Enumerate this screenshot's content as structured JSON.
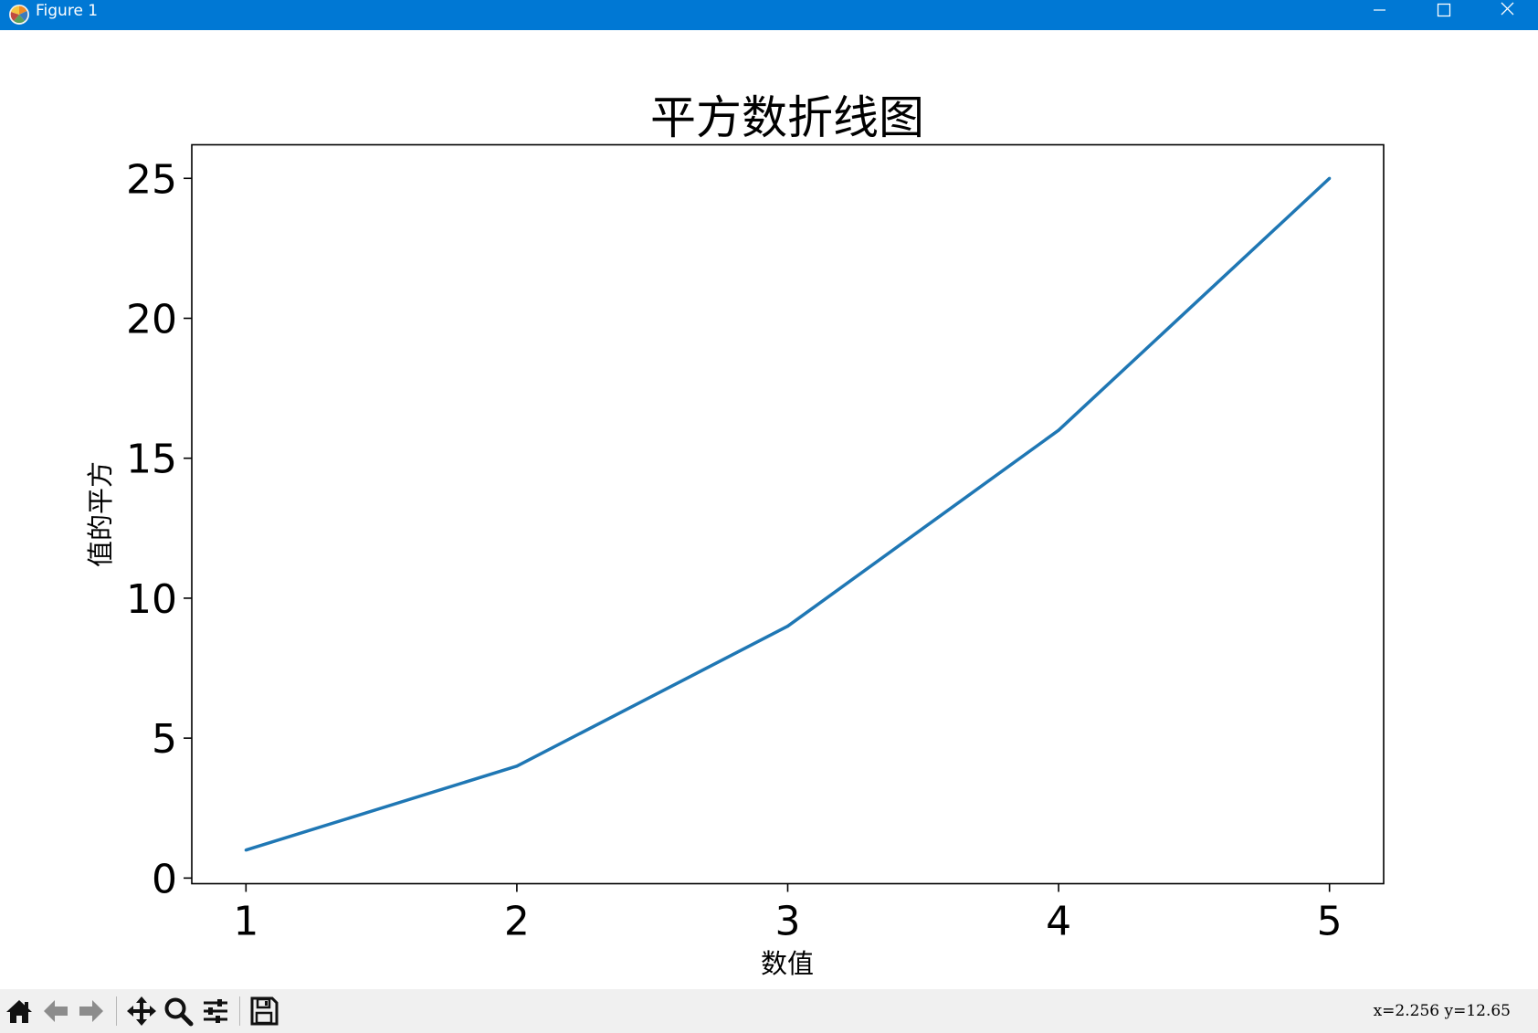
{
  "window": {
    "title": "Figure 1",
    "titlebar_color": "#0078d4"
  },
  "toolbar": {
    "buttons": [
      "home-icon",
      "back-arrow-icon",
      "forward-arrow-icon",
      "pan-icon",
      "zoom-icon",
      "configure-subplots-icon",
      "save-icon"
    ],
    "coordinates": "x=2.256  y=12.65"
  },
  "chart_data": {
    "type": "line",
    "title": "平方数折线图",
    "xlabel": "数值",
    "ylabel": "值的平方",
    "x": [
      1,
      2,
      3,
      4,
      5
    ],
    "series": [
      {
        "values": [
          1,
          4,
          9,
          16,
          25
        ],
        "color": "#1f77b4"
      }
    ],
    "xticks": [
      "1",
      "2",
      "3",
      "4",
      "5"
    ],
    "yticks": [
      "0",
      "5",
      "10",
      "15",
      "20",
      "25"
    ],
    "xlim": [
      0.8,
      5.2
    ],
    "ylim": [
      -0.2,
      26.2
    ],
    "grid": false,
    "legend": false
  }
}
